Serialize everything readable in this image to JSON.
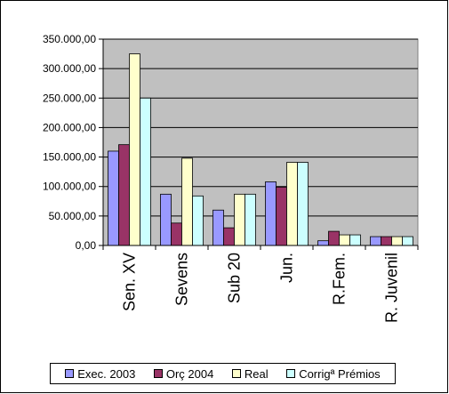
{
  "chart_data": {
    "type": "bar",
    "categories": [
      "Sen. XV",
      "Sevens",
      "Sub 20",
      "Jun.",
      "R.Fem.",
      "R. Juvenil"
    ],
    "series": [
      {
        "name": "Exec. 2003",
        "color": "#9999ff",
        "values": [
          160000,
          87000,
          60000,
          108000,
          8000,
          15000
        ]
      },
      {
        "name": "Orç 2004",
        "color": "#993366",
        "values": [
          171000,
          38000,
          30000,
          99000,
          24000,
          15000
        ]
      },
      {
        "name": "Real",
        "color": "#ffffcc",
        "values": [
          325000,
          148000,
          87000,
          141000,
          18000,
          15000
        ]
      },
      {
        "name": "Corrigª Prémios",
        "color": "#ccffff",
        "values": [
          250000,
          84000,
          87000,
          141000,
          18000,
          15000
        ]
      }
    ],
    "yticks": [
      "0,00",
      "50.000,00",
      "100.000,00",
      "150.000,00",
      "200.000,00",
      "250.000,00",
      "300.000,00",
      "350.000,00"
    ],
    "ylim": [
      0,
      350000
    ],
    "plot_background": "#c0c0c0",
    "grid": true,
    "legend_position": "bottom"
  }
}
